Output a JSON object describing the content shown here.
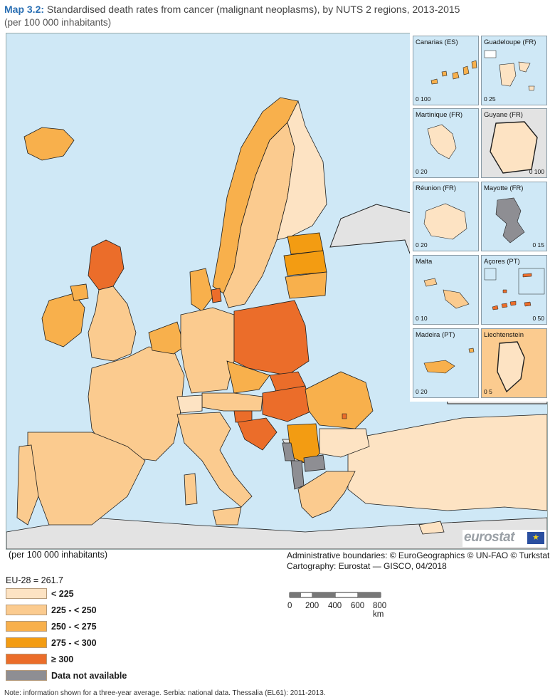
{
  "header": {
    "map_number": "Map 3.2:",
    "title": "Standardised death rates from cancer (malignant neoplasms), by NUTS 2 regions, 2013-2015",
    "subtitle": "(per 100 000 inhabitants)"
  },
  "colors": {
    "sea": "#cfe8f6",
    "non_eu_land": "#e3e3e3",
    "lt225": "#fde3c3",
    "225_250": "#fbcb8f",
    "250_275": "#f8b04c",
    "275_300": "#f39c12",
    "ge300": "#eb6d2a",
    "na": "#8e8e93",
    "border": "#1e1e1e"
  },
  "insets": [
    {
      "name": "Canarias (ES)",
      "scale": "0  100",
      "fill": "250_275"
    },
    {
      "name": "Guadeloupe (FR)",
      "scale": "0   25",
      "fill": "lt225"
    },
    {
      "name": "Martinique (FR)",
      "scale": "0    20",
      "fill": "lt225"
    },
    {
      "name": "Guyane (FR)",
      "scale": "0  100",
      "fill": "lt225"
    },
    {
      "name": "Réunion (FR)",
      "scale": "0    20",
      "fill": "lt225"
    },
    {
      "name": "Mayotte (FR)",
      "scale": "0     15",
      "fill": "na"
    },
    {
      "name": "Malta",
      "scale": "0    10",
      "fill": "225_250"
    },
    {
      "name": "Açores (PT)",
      "scale": "0   50",
      "fill": "ge300"
    },
    {
      "name": "Madeira (PT)",
      "scale": "0    20",
      "fill": "250_275"
    },
    {
      "name": "Liechtenstein",
      "scale": "0   5",
      "fill": "lt225"
    }
  ],
  "logo": {
    "text": "eurostat",
    "flag_stars": "★"
  },
  "footer": {
    "unit": "(per 100 000 inhabitants)",
    "credits_line1": "Administrative boundaries: © EuroGeographics © UN-FAO © Turkstat",
    "credits_line2": "Cartography: Eurostat — GISCO, 04/2018",
    "eu_average": "EU-28 = 261.7",
    "note": "Note: information shown for a three-year average. Serbia: national data. Thessalia (EL61): 2011-2013."
  },
  "legend": [
    {
      "label": "< 225",
      "color": "#fde3c3"
    },
    {
      "label": "225 - < 250",
      "color": "#fbcb8f"
    },
    {
      "label": "250 - < 275",
      "color": "#f8b04c"
    },
    {
      "label": "275 - < 300",
      "color": "#f39c12"
    },
    {
      "label": "≥ 300",
      "color": "#eb6d2a"
    },
    {
      "label": "Data not available",
      "color": "#8e8e93"
    }
  ],
  "scalebar": {
    "labels": [
      "0",
      "200",
      "400",
      "600",
      "800 km"
    ]
  }
}
